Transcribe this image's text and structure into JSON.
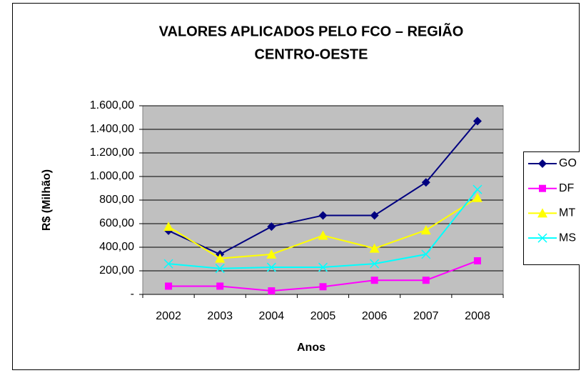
{
  "chart_data": {
    "type": "line",
    "title": [
      "VALORES APLICADOS PELO FCO – REGIÃO",
      "CENTRO-OESTE"
    ],
    "x_label": "Anos",
    "y_label": "R$ (Milhão)",
    "categories": [
      "2002",
      "2003",
      "2004",
      "2005",
      "2006",
      "2007",
      "2008"
    ],
    "series": [
      {
        "name": "GO",
        "color": "#000080",
        "marker": "diamond",
        "values": [
          540,
          340,
          575,
          670,
          670,
          950,
          1470
        ]
      },
      {
        "name": "DF",
        "color": "#ff00ff",
        "marker": "square",
        "values": [
          70,
          70,
          30,
          65,
          120,
          120,
          285
        ]
      },
      {
        "name": "MT",
        "color": "#ffff00",
        "marker": "triangle",
        "values": [
          575,
          305,
          340,
          500,
          390,
          545,
          820
        ]
      },
      {
        "name": "MS",
        "color": "#00ffff",
        "marker": "x",
        "values": [
          260,
          220,
          230,
          230,
          260,
          340,
          890
        ]
      }
    ],
    "ylim": [
      0,
      1600
    ],
    "yticks": [
      {
        "value": 0,
        "label": "-"
      },
      {
        "value": 200,
        "label": "200,00"
      },
      {
        "value": 400,
        "label": "400,00"
      },
      {
        "value": 600,
        "label": "600,00"
      },
      {
        "value": 800,
        "label": "800,00"
      },
      {
        "value": 1000,
        "label": "1.000,00"
      },
      {
        "value": 1200,
        "label": "1.200,00"
      },
      {
        "value": 1400,
        "label": "1.400,00"
      },
      {
        "value": 1600,
        "label": "1.600,00"
      }
    ],
    "grid": true,
    "legend": "right"
  }
}
